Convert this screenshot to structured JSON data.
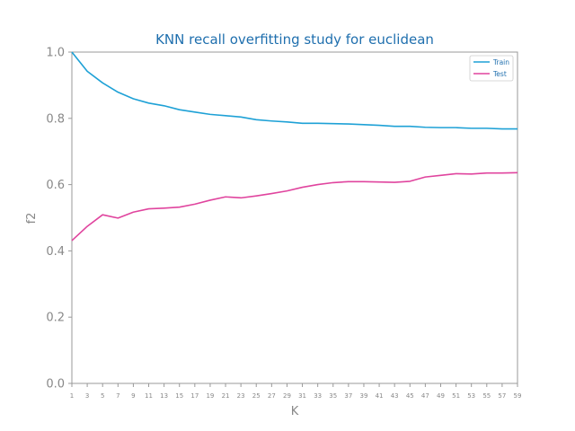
{
  "colors": {
    "title": "#1f6fae",
    "axis": "#999999",
    "tick_label": "#888888",
    "train": "#1ea1d6",
    "test": "#e0449e",
    "legend_text": "#1f6fae"
  },
  "chart_data": {
    "type": "line",
    "title": "KNN recall overfitting study for euclidean",
    "xlabel": "K",
    "ylabel": "f2",
    "ylim": [
      0.0,
      1.0
    ],
    "xlim": [
      1,
      59
    ],
    "yticks": [
      "0.0",
      "0.2",
      "0.4",
      "0.6",
      "0.8",
      "1.0"
    ],
    "x": [
      1,
      3,
      5,
      7,
      9,
      11,
      13,
      15,
      17,
      19,
      21,
      23,
      25,
      27,
      29,
      31,
      33,
      35,
      37,
      39,
      41,
      43,
      45,
      47,
      49,
      51,
      53,
      55,
      57,
      59
    ],
    "legend_position": "top-right",
    "grid": false,
    "series": [
      {
        "name": "Train",
        "values": [
          1.0,
          0.942,
          0.907,
          0.879,
          0.859,
          0.846,
          0.838,
          0.826,
          0.819,
          0.812,
          0.808,
          0.804,
          0.796,
          0.792,
          0.789,
          0.785,
          0.785,
          0.784,
          0.783,
          0.781,
          0.779,
          0.776,
          0.776,
          0.773,
          0.772,
          0.772,
          0.77,
          0.77,
          0.768,
          0.768
        ]
      },
      {
        "name": "Test",
        "values": [
          0.431,
          0.474,
          0.509,
          0.499,
          0.517,
          0.527,
          0.529,
          0.532,
          0.541,
          0.553,
          0.563,
          0.56,
          0.566,
          0.573,
          0.581,
          0.592,
          0.6,
          0.606,
          0.609,
          0.609,
          0.608,
          0.607,
          0.61,
          0.623,
          0.628,
          0.633,
          0.632,
          0.635,
          0.635,
          0.636
        ]
      }
    ]
  }
}
